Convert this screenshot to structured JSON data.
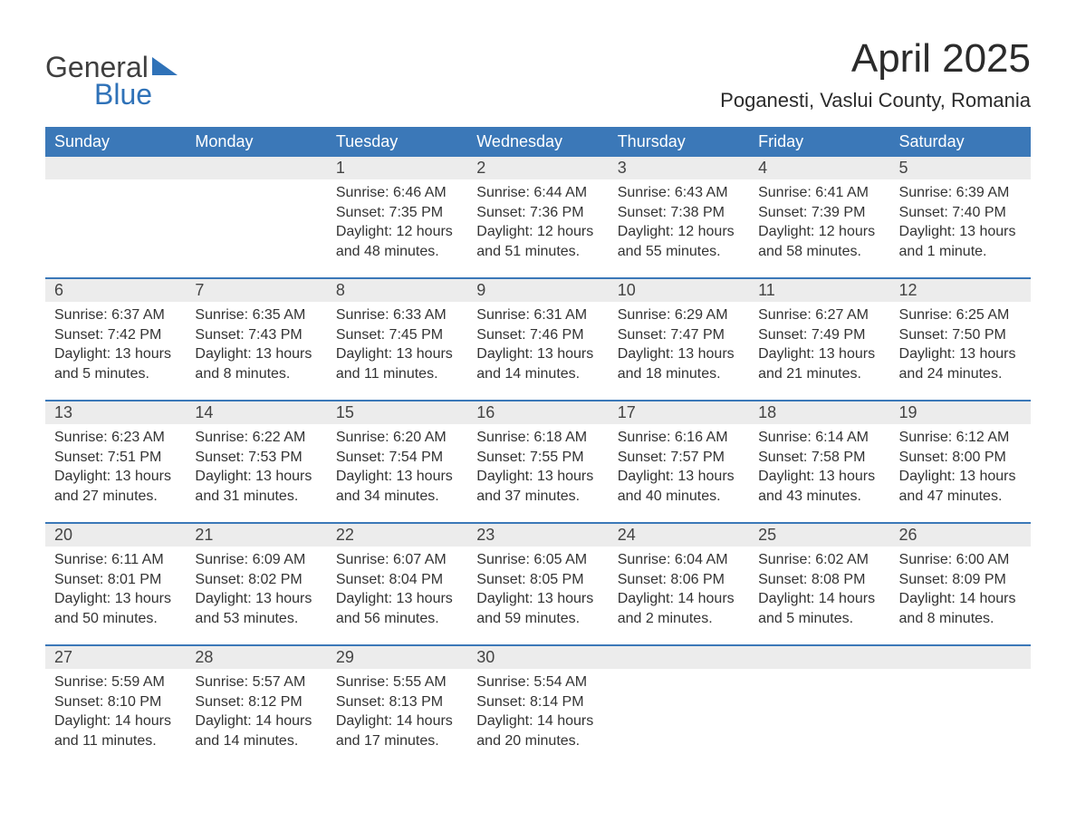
{
  "logo": {
    "word1": "General",
    "word2": "Blue"
  },
  "title": "April 2025",
  "location": "Poganesti, Vaslui County, Romania",
  "colors": {
    "header_bg": "#3b78b8",
    "header_text": "#ffffff",
    "daynum_bg": "#ececec",
    "text": "#2f2f2f",
    "logo_blue": "#2f72b8",
    "page_bg": "#ffffff"
  },
  "typography": {
    "title_fontsize": 44,
    "location_fontsize": 22,
    "header_fontsize": 18,
    "daynum_fontsize": 18,
    "body_fontsize": 16,
    "logo_fontsize": 32
  },
  "days_of_week": [
    "Sunday",
    "Monday",
    "Tuesday",
    "Wednesday",
    "Thursday",
    "Friday",
    "Saturday"
  ],
  "weeks": [
    [
      null,
      null,
      {
        "n": "1",
        "sr": "Sunrise: 6:46 AM",
        "ss": "Sunset: 7:35 PM",
        "dl": "Daylight: 12 hours and 48 minutes."
      },
      {
        "n": "2",
        "sr": "Sunrise: 6:44 AM",
        "ss": "Sunset: 7:36 PM",
        "dl": "Daylight: 12 hours and 51 minutes."
      },
      {
        "n": "3",
        "sr": "Sunrise: 6:43 AM",
        "ss": "Sunset: 7:38 PM",
        "dl": "Daylight: 12 hours and 55 minutes."
      },
      {
        "n": "4",
        "sr": "Sunrise: 6:41 AM",
        "ss": "Sunset: 7:39 PM",
        "dl": "Daylight: 12 hours and 58 minutes."
      },
      {
        "n": "5",
        "sr": "Sunrise: 6:39 AM",
        "ss": "Sunset: 7:40 PM",
        "dl": "Daylight: 13 hours and 1 minute."
      }
    ],
    [
      {
        "n": "6",
        "sr": "Sunrise: 6:37 AM",
        "ss": "Sunset: 7:42 PM",
        "dl": "Daylight: 13 hours and 5 minutes."
      },
      {
        "n": "7",
        "sr": "Sunrise: 6:35 AM",
        "ss": "Sunset: 7:43 PM",
        "dl": "Daylight: 13 hours and 8 minutes."
      },
      {
        "n": "8",
        "sr": "Sunrise: 6:33 AM",
        "ss": "Sunset: 7:45 PM",
        "dl": "Daylight: 13 hours and 11 minutes."
      },
      {
        "n": "9",
        "sr": "Sunrise: 6:31 AM",
        "ss": "Sunset: 7:46 PM",
        "dl": "Daylight: 13 hours and 14 minutes."
      },
      {
        "n": "10",
        "sr": "Sunrise: 6:29 AM",
        "ss": "Sunset: 7:47 PM",
        "dl": "Daylight: 13 hours and 18 minutes."
      },
      {
        "n": "11",
        "sr": "Sunrise: 6:27 AM",
        "ss": "Sunset: 7:49 PM",
        "dl": "Daylight: 13 hours and 21 minutes."
      },
      {
        "n": "12",
        "sr": "Sunrise: 6:25 AM",
        "ss": "Sunset: 7:50 PM",
        "dl": "Daylight: 13 hours and 24 minutes."
      }
    ],
    [
      {
        "n": "13",
        "sr": "Sunrise: 6:23 AM",
        "ss": "Sunset: 7:51 PM",
        "dl": "Daylight: 13 hours and 27 minutes."
      },
      {
        "n": "14",
        "sr": "Sunrise: 6:22 AM",
        "ss": "Sunset: 7:53 PM",
        "dl": "Daylight: 13 hours and 31 minutes."
      },
      {
        "n": "15",
        "sr": "Sunrise: 6:20 AM",
        "ss": "Sunset: 7:54 PM",
        "dl": "Daylight: 13 hours and 34 minutes."
      },
      {
        "n": "16",
        "sr": "Sunrise: 6:18 AM",
        "ss": "Sunset: 7:55 PM",
        "dl": "Daylight: 13 hours and 37 minutes."
      },
      {
        "n": "17",
        "sr": "Sunrise: 6:16 AM",
        "ss": "Sunset: 7:57 PM",
        "dl": "Daylight: 13 hours and 40 minutes."
      },
      {
        "n": "18",
        "sr": "Sunrise: 6:14 AM",
        "ss": "Sunset: 7:58 PM",
        "dl": "Daylight: 13 hours and 43 minutes."
      },
      {
        "n": "19",
        "sr": "Sunrise: 6:12 AM",
        "ss": "Sunset: 8:00 PM",
        "dl": "Daylight: 13 hours and 47 minutes."
      }
    ],
    [
      {
        "n": "20",
        "sr": "Sunrise: 6:11 AM",
        "ss": "Sunset: 8:01 PM",
        "dl": "Daylight: 13 hours and 50 minutes."
      },
      {
        "n": "21",
        "sr": "Sunrise: 6:09 AM",
        "ss": "Sunset: 8:02 PM",
        "dl": "Daylight: 13 hours and 53 minutes."
      },
      {
        "n": "22",
        "sr": "Sunrise: 6:07 AM",
        "ss": "Sunset: 8:04 PM",
        "dl": "Daylight: 13 hours and 56 minutes."
      },
      {
        "n": "23",
        "sr": "Sunrise: 6:05 AM",
        "ss": "Sunset: 8:05 PM",
        "dl": "Daylight: 13 hours and 59 minutes."
      },
      {
        "n": "24",
        "sr": "Sunrise: 6:04 AM",
        "ss": "Sunset: 8:06 PM",
        "dl": "Daylight: 14 hours and 2 minutes."
      },
      {
        "n": "25",
        "sr": "Sunrise: 6:02 AM",
        "ss": "Sunset: 8:08 PM",
        "dl": "Daylight: 14 hours and 5 minutes."
      },
      {
        "n": "26",
        "sr": "Sunrise: 6:00 AM",
        "ss": "Sunset: 8:09 PM",
        "dl": "Daylight: 14 hours and 8 minutes."
      }
    ],
    [
      {
        "n": "27",
        "sr": "Sunrise: 5:59 AM",
        "ss": "Sunset: 8:10 PM",
        "dl": "Daylight: 14 hours and 11 minutes."
      },
      {
        "n": "28",
        "sr": "Sunrise: 5:57 AM",
        "ss": "Sunset: 8:12 PM",
        "dl": "Daylight: 14 hours and 14 minutes."
      },
      {
        "n": "29",
        "sr": "Sunrise: 5:55 AM",
        "ss": "Sunset: 8:13 PM",
        "dl": "Daylight: 14 hours and 17 minutes."
      },
      {
        "n": "30",
        "sr": "Sunrise: 5:54 AM",
        "ss": "Sunset: 8:14 PM",
        "dl": "Daylight: 14 hours and 20 minutes."
      },
      null,
      null,
      null
    ]
  ]
}
